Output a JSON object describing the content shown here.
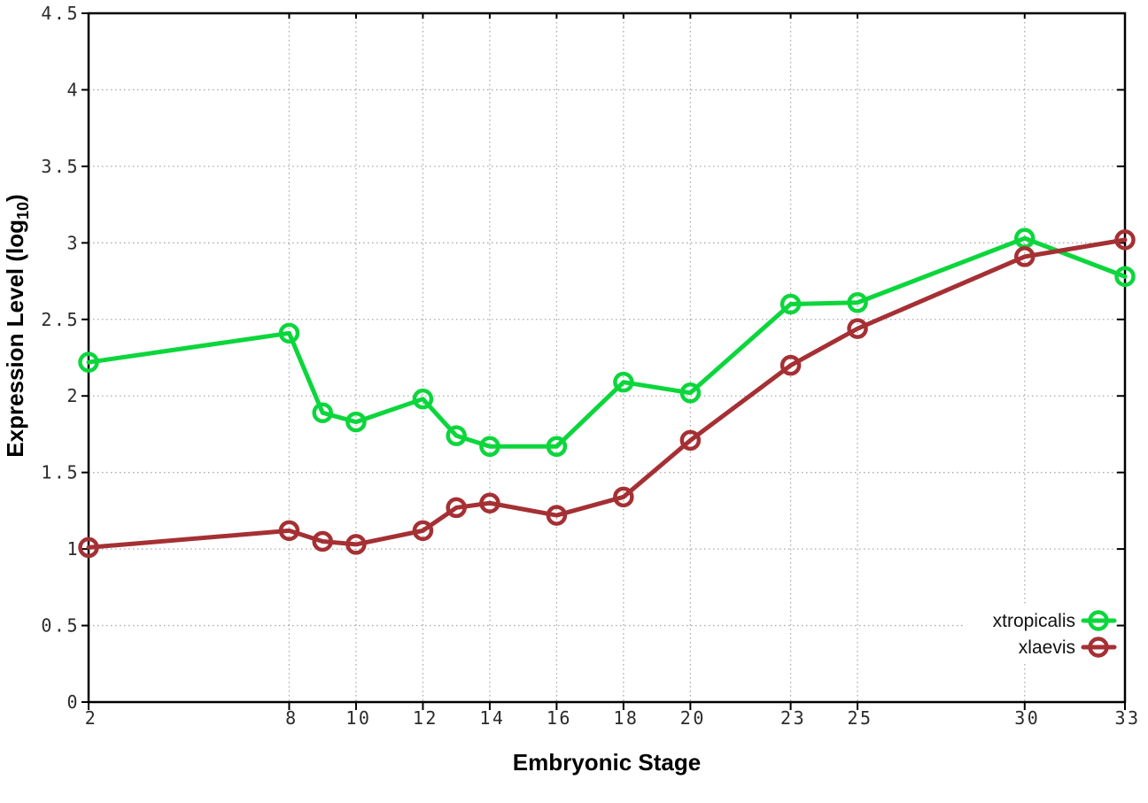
{
  "chart_data": {
    "type": "line",
    "title": "",
    "xlabel": "Embryonic Stage",
    "ylabel": "Expression Level (log10)",
    "ylabel_parts": {
      "prefix": "Expression Level (log",
      "subscript": "10",
      "suffix": ")"
    },
    "x": [
      2,
      8,
      9,
      10,
      12,
      13,
      14,
      16,
      18,
      20,
      23,
      25,
      30,
      33
    ],
    "series": [
      {
        "name": "xtropicalis",
        "color": "#0bd63c",
        "values": [
          2.22,
          2.41,
          1.89,
          1.83,
          1.98,
          1.74,
          1.67,
          1.67,
          2.09,
          2.02,
          2.6,
          2.61,
          3.03,
          2.78
        ]
      },
      {
        "name": "xlaevis",
        "color": "#a53034",
        "values": [
          1.01,
          1.12,
          1.05,
          1.03,
          1.12,
          1.27,
          1.3,
          1.22,
          1.34,
          1.71,
          2.2,
          2.44,
          2.91,
          3.02
        ]
      }
    ],
    "xlim": [
      2,
      33
    ],
    "ylim": [
      0,
      4.5
    ],
    "x_ticks": [
      2,
      8,
      10,
      12,
      14,
      16,
      18,
      20,
      23,
      25,
      30,
      33
    ],
    "x_tick_labels": [
      "2",
      "8",
      "10",
      "12",
      "14",
      "16",
      "18",
      "20",
      "23",
      "25",
      "30",
      "33"
    ],
    "y_ticks": [
      0,
      0.5,
      1,
      1.5,
      2,
      2.5,
      3,
      3.5,
      4,
      4.5
    ],
    "y_tick_labels": [
      "0",
      "0.5",
      "1",
      "1.5",
      "2",
      "2.5",
      "3",
      "3.5",
      "4",
      "4.5"
    ],
    "grid": true,
    "grid_style": "dotted",
    "legend_position": "bottom-right",
    "marker": "open-circle"
  },
  "style": {
    "background": "#ffffff",
    "axis_color": "#000000",
    "grid_color": "#aaaaaa",
    "tick_label_color": "#2b2b2b"
  }
}
